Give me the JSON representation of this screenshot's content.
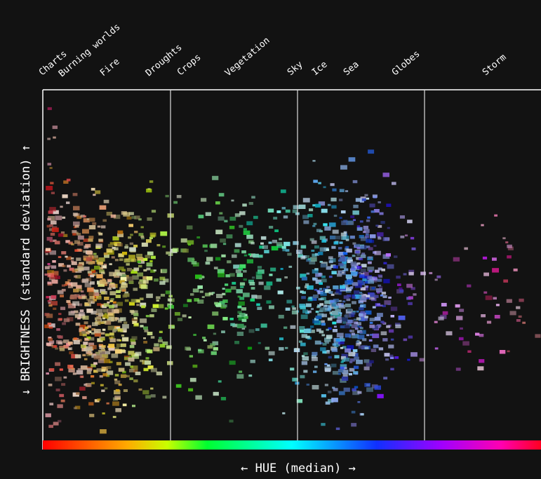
{
  "header": {
    "y_axis_label": "↓ BRIGHTNESS (standard deviation) ↑",
    "x_axis_label": "← HUE (median) →"
  },
  "topics": [
    "Charts",
    "Burning worlds",
    "Fire",
    "Droughts",
    "Crops",
    "Vegetation",
    "Sky",
    "Ice",
    "Sea",
    "Globes",
    "Storm"
  ]
}
